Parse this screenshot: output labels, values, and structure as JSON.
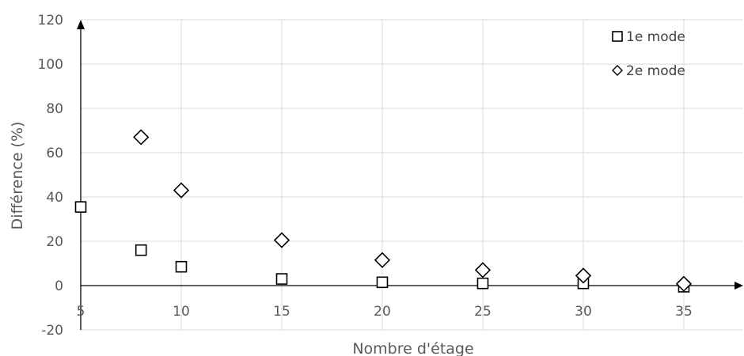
{
  "chart_data": {
    "type": "scatter",
    "title": "",
    "xlabel": "Nombre d'étage",
    "ylabel": "Différence (%)",
    "xlim": [
      5,
      37.6
    ],
    "ylim": [
      -20,
      120
    ],
    "x_ticks": [
      5,
      10,
      15,
      20,
      25,
      30,
      35
    ],
    "y_ticks": [
      -20,
      0,
      20,
      40,
      60,
      80,
      100,
      120
    ],
    "grid": true,
    "legend_position": "top-right",
    "series": [
      {
        "name": "1e mode",
        "marker": "square",
        "x": [
          5,
          8,
          10,
          15,
          20,
          25,
          30,
          35
        ],
        "y": [
          35.5,
          16,
          8.5,
          3,
          1.5,
          1,
          1,
          -0.5
        ]
      },
      {
        "name": "2e mode",
        "marker": "diamond",
        "x": [
          8,
          10,
          15,
          20,
          25,
          30,
          35
        ],
        "y": [
          67,
          43,
          20.5,
          11.5,
          7,
          4.5,
          0.8
        ]
      }
    ]
  }
}
